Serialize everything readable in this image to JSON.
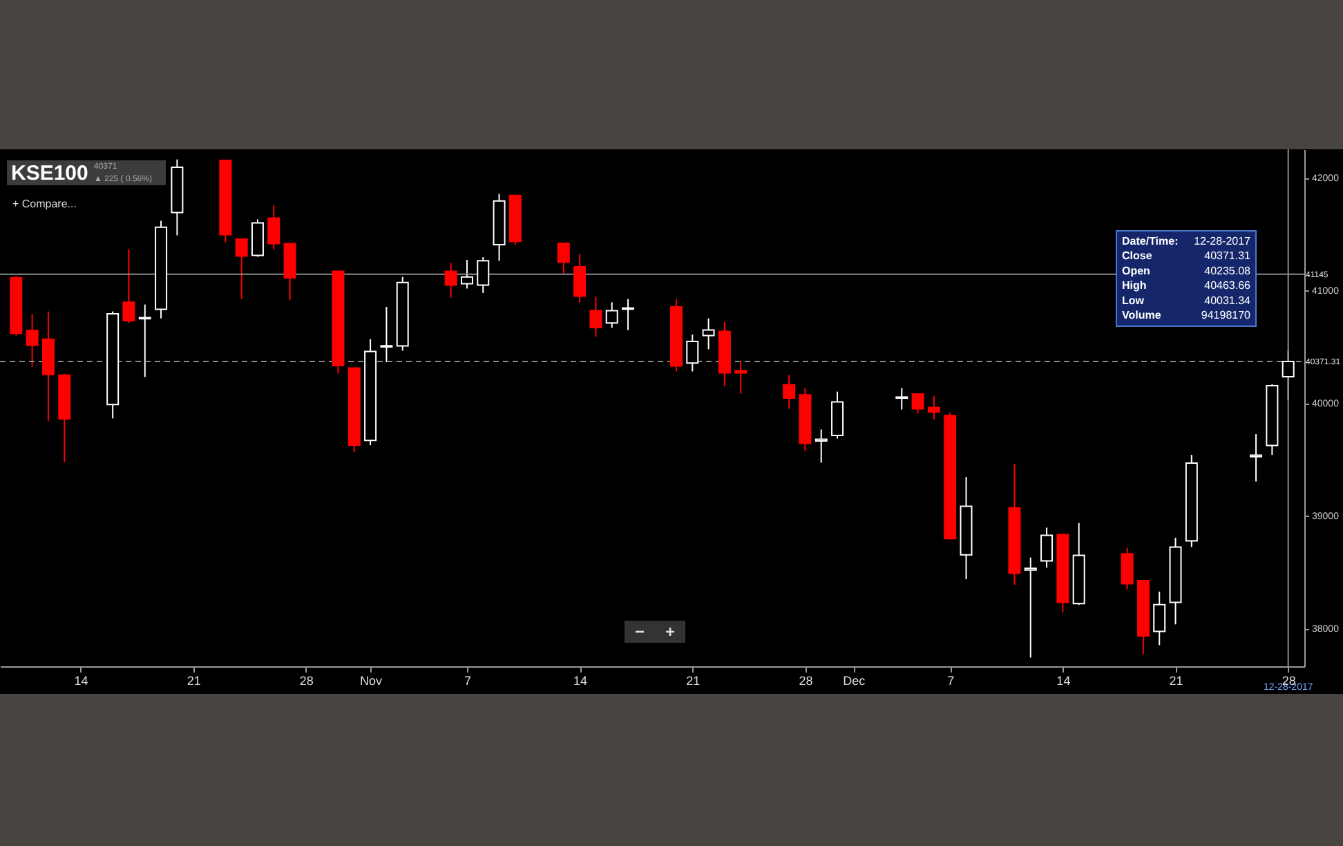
{
  "chart_data": {
    "type": "candlestick",
    "title": "KSE100",
    "x": [
      "2017-10-10",
      "2017-10-11",
      "2017-10-12",
      "2017-10-13",
      "2017-10-16",
      "2017-10-17",
      "2017-10-18",
      "2017-10-19",
      "2017-10-20",
      "2017-10-23",
      "2017-10-24",
      "2017-10-25",
      "2017-10-26",
      "2017-10-27",
      "2017-10-30",
      "2017-10-31",
      "2017-11-01",
      "2017-11-02",
      "2017-11-03",
      "2017-11-06",
      "2017-11-07",
      "2017-11-08",
      "2017-11-09",
      "2017-11-10",
      "2017-11-13",
      "2017-11-14",
      "2017-11-15",
      "2017-11-16",
      "2017-11-17",
      "2017-11-20",
      "2017-11-21",
      "2017-11-22",
      "2017-11-23",
      "2017-11-24",
      "2017-11-27",
      "2017-11-28",
      "2017-11-29",
      "2017-11-30",
      "2017-12-04",
      "2017-12-05",
      "2017-12-06",
      "2017-12-07",
      "2017-12-08",
      "2017-12-11",
      "2017-12-12",
      "2017-12-13",
      "2017-12-14",
      "2017-12-15",
      "2017-12-18",
      "2017-12-19",
      "2017-12-20",
      "2017-12-21",
      "2017-12-22",
      "2017-12-26",
      "2017-12-27",
      "2017-12-28"
    ],
    "ohlc": [
      [
        41113,
        41130,
        40600,
        40620
      ],
      [
        40647,
        40794,
        40324,
        40515
      ],
      [
        40569,
        40815,
        39845,
        40254
      ],
      [
        40250,
        40260,
        39477,
        39861
      ],
      [
        39988,
        40815,
        39865,
        40794
      ],
      [
        40896,
        41367,
        40712,
        40733
      ],
      [
        40750,
        40876,
        40233,
        40760
      ],
      [
        40834,
        41620,
        40753,
        41563
      ],
      [
        41693,
        42164,
        41490,
        42094
      ],
      [
        42156,
        42160,
        41428,
        41497
      ],
      [
        41456,
        41460,
        40925,
        41306
      ],
      [
        41313,
        41632,
        41300,
        41600
      ],
      [
        41644,
        41755,
        41367,
        41416
      ],
      [
        41416,
        41420,
        40917,
        41113
      ],
      [
        41171,
        41175,
        40263,
        40336
      ],
      [
        40312,
        40315,
        39567,
        39628
      ],
      [
        39669,
        40569,
        39628,
        40459
      ],
      [
        40500,
        40855,
        40364,
        40510
      ],
      [
        40508,
        41121,
        40466,
        41072
      ],
      [
        41171,
        41244,
        40937,
        41048
      ],
      [
        41060,
        41272,
        41018,
        41121
      ],
      [
        41048,
        41297,
        40978,
        41264
      ],
      [
        41407,
        41858,
        41264,
        41796
      ],
      [
        41845,
        41850,
        41407,
        41436
      ],
      [
        41420,
        41425,
        41153,
        41252
      ],
      [
        41211,
        41325,
        40896,
        40950
      ],
      [
        40822,
        40945,
        40589,
        40671
      ],
      [
        40712,
        40896,
        40671,
        40822
      ],
      [
        40835,
        40925,
        40650,
        40845
      ],
      [
        40855,
        40925,
        40282,
        40331
      ],
      [
        40356,
        40610,
        40282,
        40548
      ],
      [
        40601,
        40753,
        40479,
        40650
      ],
      [
        40638,
        40720,
        40152,
        40270
      ],
      [
        40290,
        40368,
        40086,
        40270
      ],
      [
        40164,
        40250,
        39951,
        40045
      ],
      [
        40074,
        40135,
        39575,
        39644
      ],
      [
        39665,
        39767,
        39472,
        39680
      ],
      [
        39714,
        40103,
        39686,
        40012
      ],
      [
        40045,
        40135,
        39944,
        40055
      ],
      [
        40082,
        40090,
        39910,
        39951
      ],
      [
        39963,
        40066,
        39858,
        39923
      ],
      [
        39890,
        39919,
        38790,
        38798
      ],
      [
        38655,
        39346,
        38438,
        39085
      ],
      [
        39072,
        39460,
        38389,
        38491
      ],
      [
        38520,
        38631,
        37742,
        38535
      ],
      [
        38601,
        38896,
        38540,
        38827
      ],
      [
        38834,
        38840,
        38143,
        38233
      ],
      [
        38221,
        38937,
        38210,
        38650
      ],
      [
        38663,
        38717,
        38349,
        38398
      ],
      [
        38426,
        38430,
        37775,
        37935
      ],
      [
        37975,
        38328,
        37853,
        38213
      ],
      [
        38233,
        38806,
        38037,
        38724
      ],
      [
        38778,
        39542,
        38724,
        39469
      ],
      [
        39525,
        39726,
        39306,
        39540
      ],
      [
        39625,
        40168,
        39542,
        40156
      ],
      [
        40235.08,
        40463.66,
        40031.34,
        40371.31
      ]
    ],
    "colors": [
      "#ff0000",
      "#ff0000",
      "#ff0000",
      "#ff0000",
      "#ffffff",
      "#ff0000",
      "#ffffff",
      "#ffffff",
      "#ffffff",
      "#ff0000",
      "#ff0000",
      "#ffffff",
      "#ff0000",
      "#ff0000",
      "#ff0000",
      "#ff0000",
      "#ffffff",
      "#ffffff",
      "#ffffff",
      "#ff0000",
      "#ffffff",
      "#ffffff",
      "#ffffff",
      "#ff0000",
      "#ff0000",
      "#ff0000",
      "#ff0000",
      "#ffffff",
      "#ffffff",
      "#ff0000",
      "#ffffff",
      "#ffffff",
      "#ff0000",
      "#ff0000",
      "#ff0000",
      "#ff0000",
      "#ffffff",
      "#ffffff",
      "#ffffff",
      "#ff0000",
      "#ff0000",
      "#ff0000",
      "#ffffff",
      "#ff0000",
      "#ffffff",
      "#ffffff",
      "#ff0000",
      "#ffffff",
      "#ff0000",
      "#ff0000",
      "#ffffff",
      "#ffffff",
      "#ffffff",
      "#ffffff",
      "#ffffff",
      "#ffffff"
    ],
    "xlim": [
      "2017-10-09",
      "2017-12-29"
    ],
    "xticks": [
      {
        "value": "2017-10-14",
        "label": "14"
      },
      {
        "value": "2017-10-21",
        "label": "21"
      },
      {
        "value": "2017-10-28",
        "label": "28"
      },
      {
        "value": "2017-11-01",
        "label": "Nov"
      },
      {
        "value": "2017-11-07",
        "label": "7"
      },
      {
        "value": "2017-11-14",
        "label": "14"
      },
      {
        "value": "2017-11-21",
        "label": "21"
      },
      {
        "value": "2017-11-28",
        "label": "28"
      },
      {
        "value": "2017-12-01",
        "label": "Dec"
      },
      {
        "value": "2017-12-07",
        "label": "7"
      },
      {
        "value": "2017-12-14",
        "label": "14"
      },
      {
        "value": "2017-12-21",
        "label": "21"
      },
      {
        "value": "2017-12-28",
        "label": "28"
      }
    ],
    "ylim": [
      37665,
      42254
    ],
    "yticks": [
      38000,
      39000,
      40000,
      41000,
      42000
    ],
    "grid": false,
    "ref_lines": [
      {
        "axis": "y",
        "value": 41145,
        "label": "41145",
        "color": "#8c8c8c",
        "line_style": "solid"
      },
      {
        "axis": "y",
        "value": 40371.31,
        "label": "40371.31",
        "color": "#8c8c8c",
        "line_style": "dashed"
      },
      {
        "axis": "x",
        "value": "2017-12-28",
        "label": "12-28-2017",
        "color": "#8c8c8c",
        "line_style": "solid"
      }
    ],
    "annotations": [
      "40371",
      "▲ 225 ( 0.56%)",
      "+ Compare...",
      "Date/Time: 12-28-2017",
      "Close 40371.31",
      "Open 40235.08",
      "High 40463.66",
      "Low 40031.34",
      "Volume 94198170",
      "−",
      "+"
    ]
  }
}
